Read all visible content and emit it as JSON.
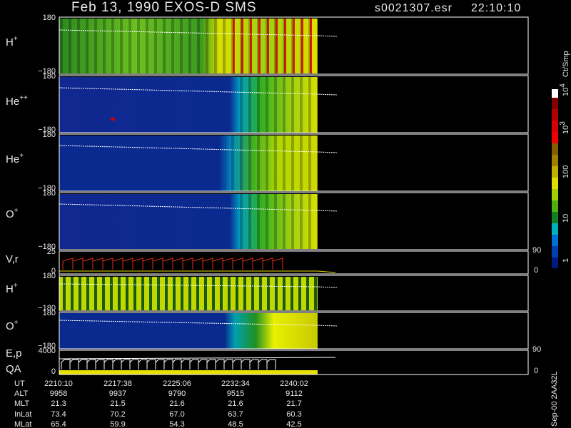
{
  "header": {
    "title": "Feb 13, 1990   EXOS-D SMS",
    "file": "s0021307.esr",
    "time": "22:10:10"
  },
  "panels": [
    {
      "label": "H",
      "charge": "+",
      "top": "180",
      "bottom": "−180"
    },
    {
      "label": "He",
      "charge": "++",
      "top": "180",
      "bottom": "−180"
    },
    {
      "label": "He",
      "charge": "+",
      "top": "180",
      "bottom": "−180"
    },
    {
      "label": "O",
      "charge": "+",
      "top": "180",
      "bottom": "−180"
    },
    {
      "label": "V,r",
      "top": "25",
      "bottom": "0",
      "right_top": "90",
      "right_bottom": "0"
    },
    {
      "label": "H",
      "charge": "+",
      "top": "180",
      "bottom": "−180"
    },
    {
      "label": "O",
      "charge": "+",
      "top": "180",
      "bottom": "−180"
    },
    {
      "label": "E,p",
      "label2": "QA",
      "top": "4000",
      "bottom": "0",
      "right_top": "90",
      "right_bottom": "0"
    }
  ],
  "colorbar": {
    "unit": "Ct/Smp",
    "labels": [
      {
        "base": "10",
        "exp": "4"
      },
      {
        "base": "10",
        "exp": "3"
      },
      {
        "base": "100"
      },
      {
        "base": "10"
      },
      {
        "base": "1"
      }
    ]
  },
  "footer": {
    "rows": [
      {
        "label": "UT",
        "values": [
          "2210:10",
          "2217:38",
          "2225:06",
          "2232:34",
          "2240:02"
        ]
      },
      {
        "label": "ALT",
        "values": [
          "9958",
          "9937",
          "9790",
          "9515",
          "9112"
        ]
      },
      {
        "label": "MLT",
        "values": [
          "21.3",
          "21.5",
          "21.6",
          "21.6",
          "21.7"
        ]
      },
      {
        "label": "InLat",
        "values": [
          "73.4",
          "70.2",
          "67.0",
          "63.7",
          "60.3"
        ]
      },
      {
        "label": "MLat",
        "values": [
          "65.4",
          "59.9",
          "54.3",
          "48.5",
          "42.5"
        ]
      }
    ]
  },
  "side_note": "Sep-00  2AA32L"
}
